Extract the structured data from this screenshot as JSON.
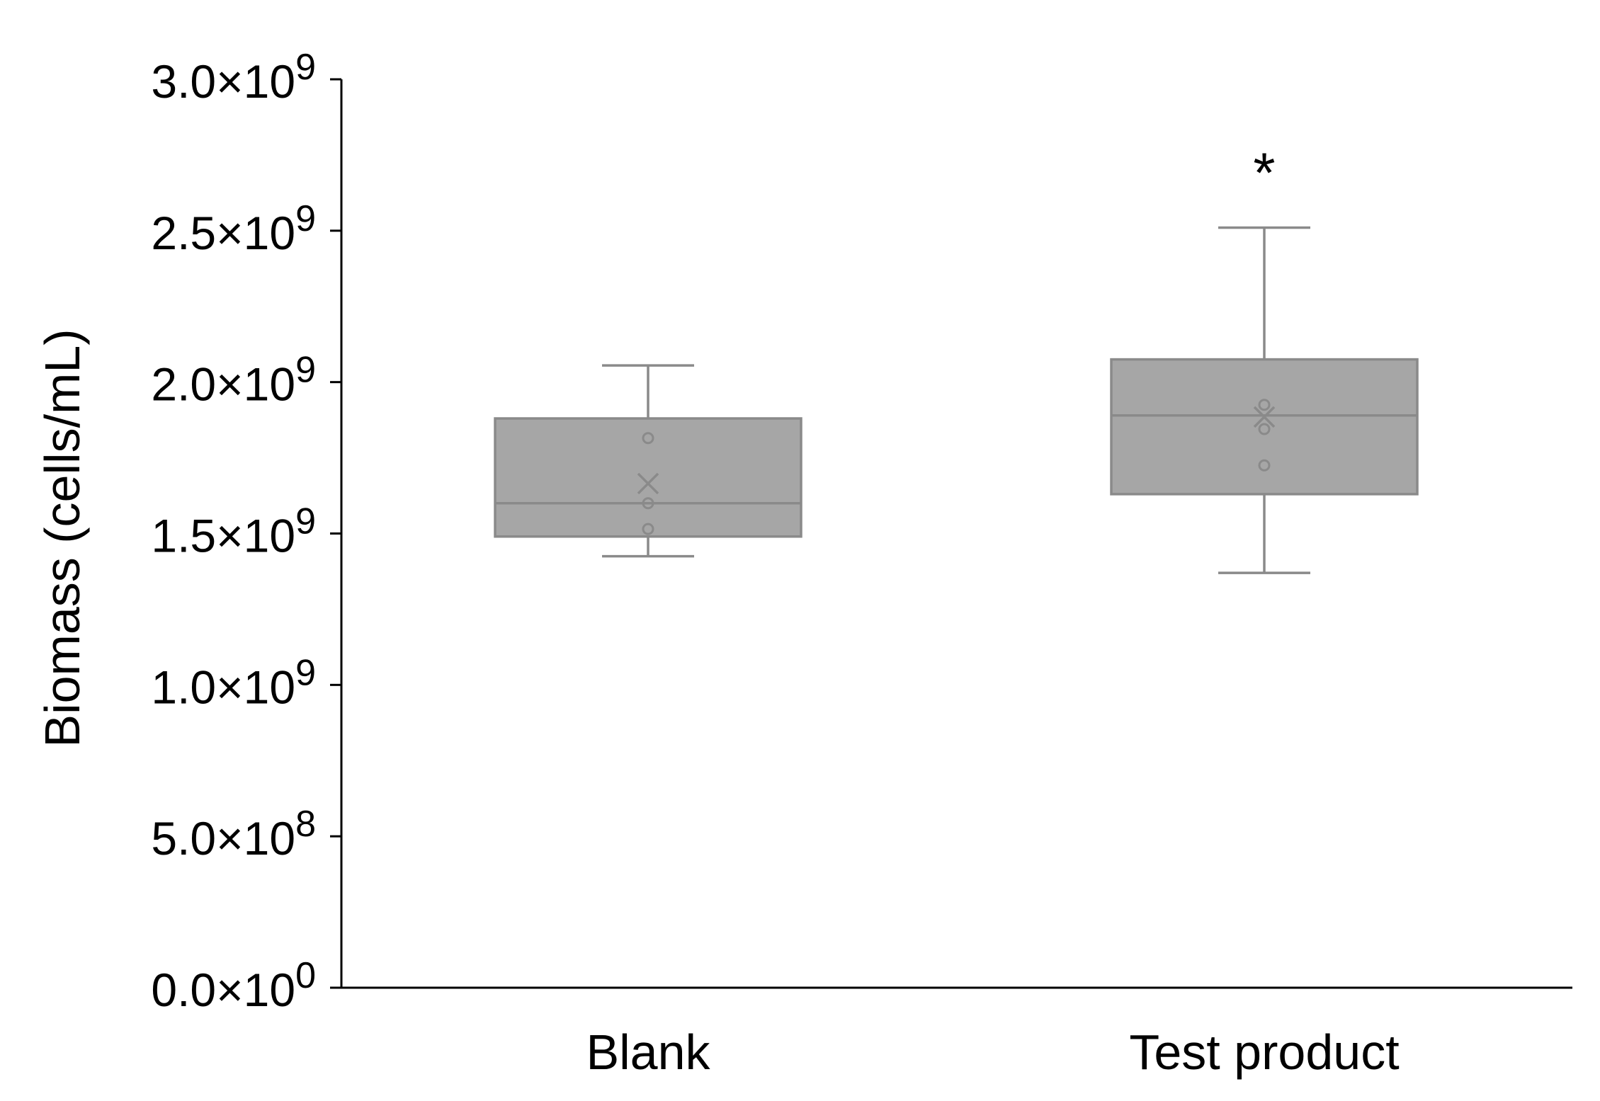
{
  "chart_data": {
    "type": "box",
    "title": "",
    "xlabel": "",
    "ylabel": "Biomass (cells/mL)",
    "ylim": [
      0,
      3000000000
    ],
    "y_ticks": [
      {
        "value": 0,
        "base": "0.0×10",
        "exp": "0"
      },
      {
        "value": 500000000,
        "base": "5.0×10",
        "exp": "8"
      },
      {
        "value": 1000000000,
        "base": "1.0×10",
        "exp": "9"
      },
      {
        "value": 1500000000,
        "base": "1.5×10",
        "exp": "9"
      },
      {
        "value": 2000000000,
        "base": "2.0×10",
        "exp": "9"
      },
      {
        "value": 2500000000,
        "base": "2.5×10",
        "exp": "9"
      },
      {
        "value": 3000000000,
        "base": "3.0×10",
        "exp": "9"
      }
    ],
    "categories": [
      "Blank",
      "Test product"
    ],
    "boxes": [
      {
        "category": "Blank",
        "whisker_low": 1425000000,
        "q1": 1490000000,
        "median": 1600000000,
        "q3": 1880000000,
        "whisker_high": 2055000000,
        "mean": 1665000000,
        "points": [
          1815000000,
          1600000000,
          1515000000
        ],
        "annotation": ""
      },
      {
        "category": "Test product",
        "whisker_low": 1370000000,
        "q1": 1630000000,
        "median": 1890000000,
        "q3": 2075000000,
        "whisker_high": 2510000000,
        "mean": 1885000000,
        "points": [
          1925000000,
          1845000000,
          1725000000
        ],
        "annotation": "*"
      }
    ],
    "box_fill": "#a6a6a6",
    "box_stroke": "#8a8a8a",
    "grid": false,
    "legend": "none"
  }
}
